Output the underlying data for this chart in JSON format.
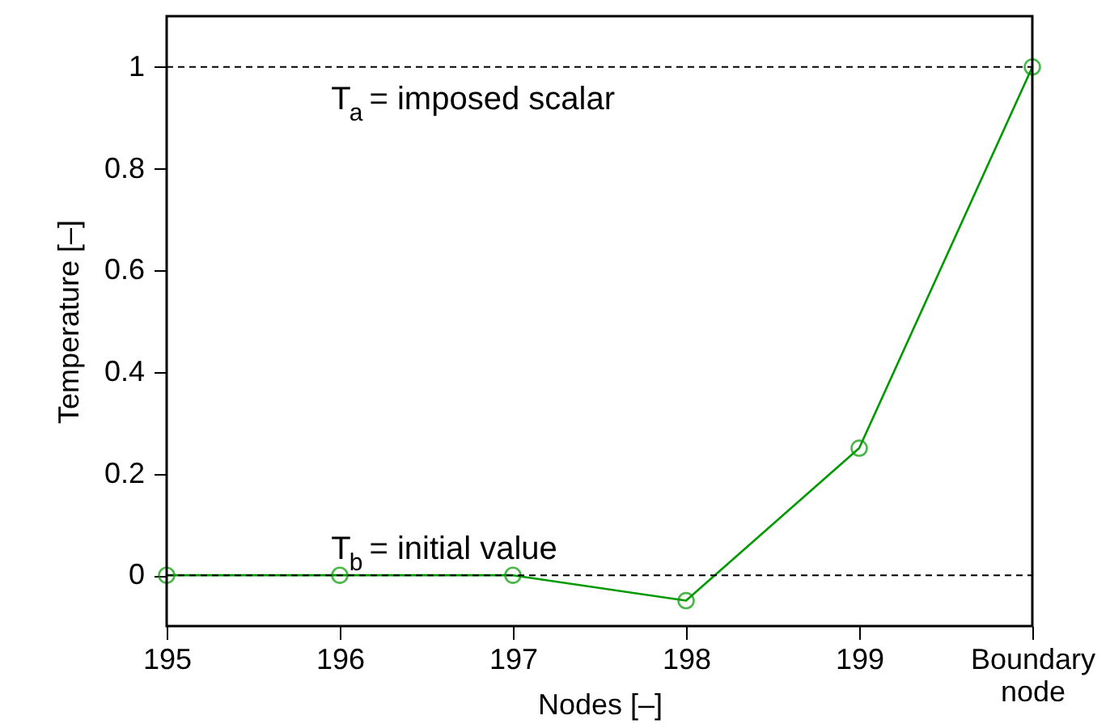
{
  "chart_data": {
    "type": "line",
    "xlabel": "Nodes [–]",
    "ylabel": "Temperature [–]",
    "categories": [
      "195",
      "196",
      "197",
      "198",
      "199",
      "Boundary node"
    ],
    "series": [
      {
        "color": "#009900",
        "values": [
          0,
          0,
          0,
          -0.05,
          0.25,
          1
        ]
      }
    ],
    "marker": "circle",
    "line_style": "solid",
    "ylim": [
      -0.1,
      1.1
    ],
    "yticks": [
      0,
      0.2,
      0.4,
      0.6,
      0.8,
      1
    ],
    "grid": false,
    "legend": false,
    "ref_lines": [
      {
        "axis": "y",
        "value": 1,
        "label": "T$_{a}$ = imposed scalar",
        "color": "#000000",
        "line_style": "dashed"
      },
      {
        "axis": "y",
        "value": 0,
        "label": "T$_{b}$ = initial value",
        "color": "#000000",
        "line_style": "dashed"
      }
    ]
  }
}
